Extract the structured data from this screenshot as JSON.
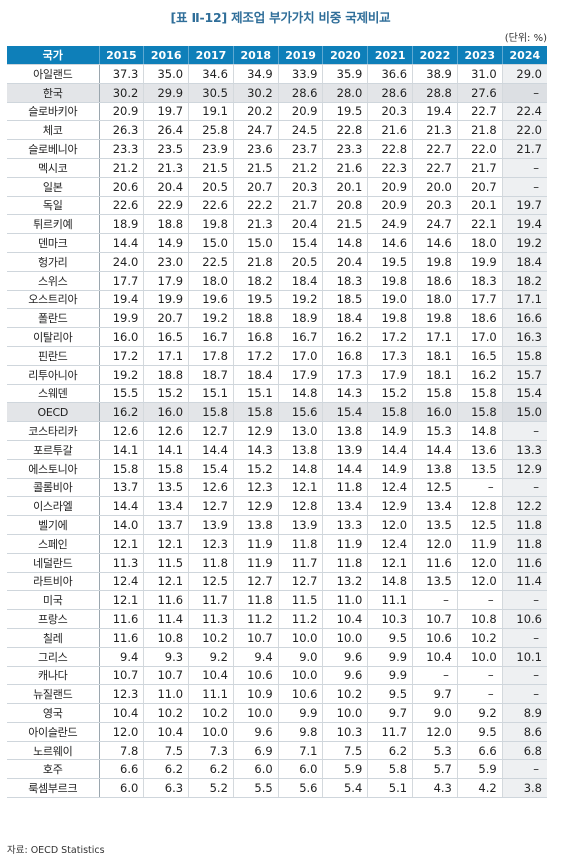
{
  "title": "[표 Ⅱ-12] 제조업 부가가치 비중 국제비교",
  "unit": "(단위: %)",
  "source": "자료: OECD Statistics",
  "table": {
    "headers": [
      "국가",
      "2015",
      "2016",
      "2017",
      "2018",
      "2019",
      "2020",
      "2021",
      "2022",
      "2023",
      "2024"
    ],
    "rows": [
      {
        "country": "아일랜드",
        "values": [
          "37.3",
          "35.0",
          "34.6",
          "34.9",
          "33.9",
          "35.9",
          "36.6",
          "38.9",
          "31.0",
          "29.0"
        ],
        "highlight": false
      },
      {
        "country": "한국",
        "values": [
          "30.2",
          "29.9",
          "30.5",
          "30.2",
          "28.6",
          "28.0",
          "28.6",
          "28.8",
          "27.6",
          "–"
        ],
        "highlight": true
      },
      {
        "country": "슬로바키아",
        "values": [
          "20.9",
          "19.7",
          "19.1",
          "20.2",
          "20.9",
          "19.5",
          "20.3",
          "19.4",
          "22.7",
          "22.4"
        ],
        "highlight": false
      },
      {
        "country": "체코",
        "values": [
          "26.3",
          "26.4",
          "25.8",
          "24.7",
          "24.5",
          "22.8",
          "21.6",
          "21.3",
          "21.8",
          "22.0"
        ],
        "highlight": false
      },
      {
        "country": "슬로베니아",
        "values": [
          "23.3",
          "23.5",
          "23.9",
          "23.6",
          "23.7",
          "23.3",
          "22.8",
          "22.7",
          "22.0",
          "21.7"
        ],
        "highlight": false
      },
      {
        "country": "멕시코",
        "values": [
          "21.2",
          "21.3",
          "21.5",
          "21.5",
          "21.2",
          "21.6",
          "22.3",
          "22.7",
          "21.7",
          "–"
        ],
        "highlight": false
      },
      {
        "country": "일본",
        "values": [
          "20.6",
          "20.4",
          "20.5",
          "20.7",
          "20.3",
          "20.1",
          "20.9",
          "20.0",
          "20.7",
          "–"
        ],
        "highlight": false
      },
      {
        "country": "독일",
        "values": [
          "22.6",
          "22.9",
          "22.6",
          "22.2",
          "21.7",
          "20.8",
          "20.9",
          "20.3",
          "20.1",
          "19.7"
        ],
        "highlight": false
      },
      {
        "country": "튀르키예",
        "values": [
          "18.9",
          "18.8",
          "19.8",
          "21.3",
          "20.4",
          "21.5",
          "24.9",
          "24.7",
          "22.1",
          "19.4"
        ],
        "highlight": false
      },
      {
        "country": "덴마크",
        "values": [
          "14.4",
          "14.9",
          "15.0",
          "15.0",
          "15.4",
          "14.8",
          "14.6",
          "14.6",
          "18.0",
          "19.2"
        ],
        "highlight": false
      },
      {
        "country": "헝가리",
        "values": [
          "24.0",
          "23.0",
          "22.5",
          "21.8",
          "20.5",
          "20.4",
          "19.5",
          "19.8",
          "19.9",
          "18.4"
        ],
        "highlight": false
      },
      {
        "country": "스위스",
        "values": [
          "17.7",
          "17.9",
          "18.0",
          "18.2",
          "18.4",
          "18.3",
          "19.8",
          "18.6",
          "18.3",
          "18.2"
        ],
        "highlight": false
      },
      {
        "country": "오스트리아",
        "values": [
          "19.4",
          "19.9",
          "19.6",
          "19.5",
          "19.2",
          "18.5",
          "19.0",
          "18.0",
          "17.7",
          "17.1"
        ],
        "highlight": false
      },
      {
        "country": "폴란드",
        "values": [
          "19.9",
          "20.7",
          "19.2",
          "18.8",
          "18.9",
          "18.4",
          "19.8",
          "19.8",
          "18.6",
          "16.6"
        ],
        "highlight": false
      },
      {
        "country": "이탈리아",
        "values": [
          "16.0",
          "16.5",
          "16.7",
          "16.8",
          "16.7",
          "16.2",
          "17.2",
          "17.1",
          "17.0",
          "16.3"
        ],
        "highlight": false
      },
      {
        "country": "핀란드",
        "values": [
          "17.2",
          "17.1",
          "17.8",
          "17.2",
          "17.0",
          "16.8",
          "17.3",
          "18.1",
          "16.5",
          "15.8"
        ],
        "highlight": false
      },
      {
        "country": "리투아니아",
        "values": [
          "19.2",
          "18.8",
          "18.7",
          "18.4",
          "17.9",
          "17.3",
          "17.9",
          "18.1",
          "16.2",
          "15.7"
        ],
        "highlight": false
      },
      {
        "country": "스웨덴",
        "values": [
          "15.5",
          "15.2",
          "15.1",
          "15.1",
          "14.8",
          "14.3",
          "15.2",
          "15.8",
          "15.8",
          "15.4"
        ],
        "highlight": false
      },
      {
        "country": "OECD",
        "values": [
          "16.2",
          "16.0",
          "15.8",
          "15.8",
          "15.6",
          "15.4",
          "15.8",
          "16.0",
          "15.8",
          "15.0"
        ],
        "highlight": true
      },
      {
        "country": "코스타리카",
        "values": [
          "12.6",
          "12.6",
          "12.7",
          "12.9",
          "13.0",
          "13.8",
          "14.9",
          "15.3",
          "14.8",
          "–"
        ],
        "highlight": false
      },
      {
        "country": "포르투갈",
        "values": [
          "14.1",
          "14.1",
          "14.4",
          "14.3",
          "13.8",
          "13.9",
          "14.4",
          "14.4",
          "13.6",
          "13.3"
        ],
        "highlight": false
      },
      {
        "country": "에스토니아",
        "values": [
          "15.8",
          "15.8",
          "15.4",
          "15.2",
          "14.8",
          "14.4",
          "14.9",
          "13.8",
          "13.5",
          "12.9"
        ],
        "highlight": false
      },
      {
        "country": "콜롬비아",
        "values": [
          "13.7",
          "13.5",
          "12.6",
          "12.3",
          "12.1",
          "11.8",
          "12.4",
          "12.5",
          "–",
          "–"
        ],
        "highlight": false
      },
      {
        "country": "이스라엘",
        "values": [
          "14.4",
          "13.4",
          "12.7",
          "12.9",
          "12.8",
          "13.4",
          "12.9",
          "13.4",
          "12.8",
          "12.2"
        ],
        "highlight": false
      },
      {
        "country": "벨기에",
        "values": [
          "14.0",
          "13.7",
          "13.9",
          "13.8",
          "13.9",
          "13.3",
          "12.0",
          "13.5",
          "12.5",
          "11.8"
        ],
        "highlight": false
      },
      {
        "country": "스페인",
        "values": [
          "12.1",
          "12.1",
          "12.3",
          "11.9",
          "11.8",
          "11.9",
          "12.4",
          "12.0",
          "11.9",
          "11.8"
        ],
        "highlight": false
      },
      {
        "country": "네덜란드",
        "values": [
          "11.3",
          "11.5",
          "11.8",
          "11.9",
          "11.7",
          "11.8",
          "12.1",
          "11.6",
          "12.0",
          "11.6"
        ],
        "highlight": false
      },
      {
        "country": "라트비아",
        "values": [
          "12.4",
          "12.1",
          "12.5",
          "12.7",
          "12.7",
          "13.2",
          "14.8",
          "13.5",
          "12.0",
          "11.4"
        ],
        "highlight": false
      },
      {
        "country": "미국",
        "values": [
          "12.1",
          "11.6",
          "11.7",
          "11.8",
          "11.5",
          "11.0",
          "11.1",
          "–",
          "–",
          "–"
        ],
        "highlight": false
      },
      {
        "country": "프랑스",
        "values": [
          "11.6",
          "11.4",
          "11.3",
          "11.2",
          "11.2",
          "10.4",
          "10.3",
          "10.7",
          "10.8",
          "10.6"
        ],
        "highlight": false
      },
      {
        "country": "칠레",
        "values": [
          "11.6",
          "10.8",
          "10.2",
          "10.7",
          "10.0",
          "10.0",
          "9.5",
          "10.6",
          "10.2",
          "–"
        ],
        "highlight": false
      },
      {
        "country": "그리스",
        "values": [
          "9.4",
          "9.3",
          "9.2",
          "9.4",
          "9.0",
          "9.6",
          "9.9",
          "10.4",
          "10.0",
          "10.1"
        ],
        "highlight": false
      },
      {
        "country": "캐나다",
        "values": [
          "10.7",
          "10.7",
          "10.4",
          "10.6",
          "10.0",
          "9.6",
          "9.9",
          "–",
          "–",
          "–"
        ],
        "highlight": false
      },
      {
        "country": "뉴질랜드",
        "values": [
          "12.3",
          "11.0",
          "11.1",
          "10.9",
          "10.6",
          "10.2",
          "9.5",
          "9.7",
          "–",
          "–"
        ],
        "highlight": false
      },
      {
        "country": "영국",
        "values": [
          "10.4",
          "10.2",
          "10.2",
          "10.0",
          "9.9",
          "10.0",
          "9.7",
          "9.0",
          "9.2",
          "8.9"
        ],
        "highlight": false
      },
      {
        "country": "아이슬란드",
        "values": [
          "12.0",
          "10.4",
          "10.0",
          "9.6",
          "9.8",
          "10.3",
          "11.7",
          "12.0",
          "9.5",
          "8.6"
        ],
        "highlight": false
      },
      {
        "country": "노르웨이",
        "values": [
          "7.8",
          "7.5",
          "7.3",
          "6.9",
          "7.1",
          "7.5",
          "6.2",
          "5.3",
          "6.6",
          "6.8"
        ],
        "highlight": false
      },
      {
        "country": "호주",
        "values": [
          "6.6",
          "6.2",
          "6.2",
          "6.0",
          "6.0",
          "5.9",
          "5.8",
          "5.7",
          "5.9",
          "–"
        ],
        "highlight": false
      },
      {
        "country": "룩셈부르크",
        "values": [
          "6.0",
          "6.3",
          "5.2",
          "5.5",
          "5.6",
          "5.4",
          "5.1",
          "4.3",
          "4.2",
          "3.8"
        ],
        "highlight": false
      }
    ]
  }
}
